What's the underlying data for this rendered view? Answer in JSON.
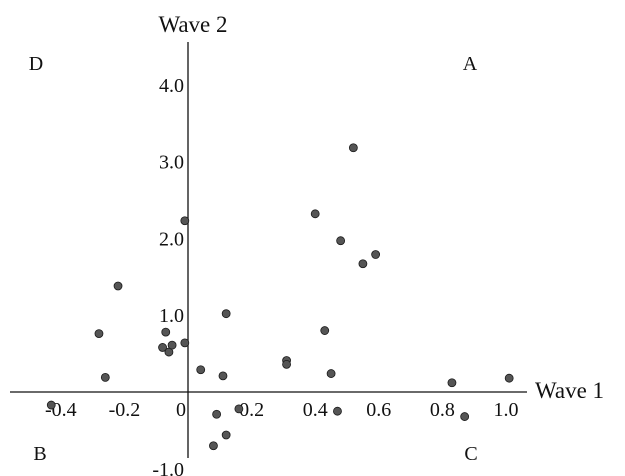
{
  "chart_data": {
    "type": "scatter",
    "xlabel": "Wave 1",
    "ylabel": "Wave 2",
    "xlim": [
      -0.5,
      1.1
    ],
    "ylim": [
      -1.0,
      4.5
    ],
    "grid": false,
    "x_ticks": [
      {
        "value": -0.4,
        "label": "-0.4"
      },
      {
        "value": -0.2,
        "label": "-0.2"
      },
      {
        "value": 0,
        "label": "0"
      },
      {
        "value": 0.2,
        "label": "0.2"
      },
      {
        "value": 0.4,
        "label": "0.4"
      },
      {
        "value": 0.6,
        "label": "0.6"
      },
      {
        "value": 0.8,
        "label": "0.8"
      },
      {
        "value": 1.0,
        "label": "1.0"
      }
    ],
    "y_ticks": [
      {
        "value": -1.0,
        "label": "-1.0"
      },
      {
        "value": 1.0,
        "label": "1.0"
      },
      {
        "value": 2.0,
        "label": "2.0"
      },
      {
        "value": 3.0,
        "label": "3.0"
      },
      {
        "value": 4.0,
        "label": "4.0"
      }
    ],
    "quadrants": [
      {
        "label": "A",
        "position": "top-right"
      },
      {
        "label": "B",
        "position": "bottom-left"
      },
      {
        "label": "C",
        "position": "bottom-right"
      },
      {
        "label": "D",
        "position": "top-left"
      }
    ],
    "point_color": "#555555",
    "points": [
      {
        "x": -0.43,
        "y": -0.17
      },
      {
        "x": -0.28,
        "y": 0.76
      },
      {
        "x": -0.26,
        "y": 0.19
      },
      {
        "x": -0.22,
        "y": 1.38
      },
      {
        "x": -0.08,
        "y": 0.58
      },
      {
        "x": -0.07,
        "y": 0.78
      },
      {
        "x": -0.06,
        "y": 0.52
      },
      {
        "x": -0.05,
        "y": 0.61
      },
      {
        "x": -0.01,
        "y": 2.23
      },
      {
        "x": -0.01,
        "y": 0.64
      },
      {
        "x": 0.04,
        "y": 0.29
      },
      {
        "x": 0.08,
        "y": -0.7
      },
      {
        "x": 0.09,
        "y": -0.29
      },
      {
        "x": 0.11,
        "y": 0.21
      },
      {
        "x": 0.12,
        "y": 1.02
      },
      {
        "x": 0.12,
        "y": -0.56
      },
      {
        "x": 0.16,
        "y": -0.22
      },
      {
        "x": 0.31,
        "y": 0.41
      },
      {
        "x": 0.31,
        "y": 0.36
      },
      {
        "x": 0.4,
        "y": 2.32
      },
      {
        "x": 0.43,
        "y": 0.8
      },
      {
        "x": 0.45,
        "y": 0.24
      },
      {
        "x": 0.47,
        "y": -0.25
      },
      {
        "x": 0.48,
        "y": 1.97
      },
      {
        "x": 0.52,
        "y": 3.18
      },
      {
        "x": 0.55,
        "y": 1.67
      },
      {
        "x": 0.59,
        "y": 1.79
      },
      {
        "x": 0.83,
        "y": 0.12
      },
      {
        "x": 0.87,
        "y": -0.32
      },
      {
        "x": 1.01,
        "y": 0.18
      }
    ]
  }
}
